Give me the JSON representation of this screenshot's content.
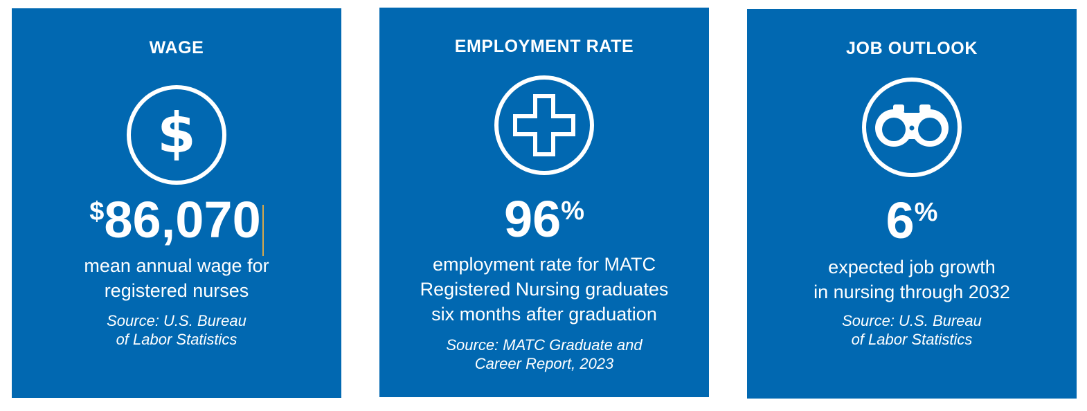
{
  "cards": {
    "wage": {
      "title": "WAGE",
      "icon": "dollar-icon",
      "stat_prefix": "$",
      "stat_value": "86,070",
      "description": [
        "mean annual wage for",
        "registered nurses"
      ],
      "source": [
        "Source: U.S. Bureau",
        "of Labor Statistics"
      ]
    },
    "employment": {
      "title": "EMPLOYMENT RATE",
      "icon": "medical-cross-icon",
      "stat_value": "96",
      "stat_suffix": "%",
      "description": [
        "employment rate for MATC",
        "Registered Nursing graduates",
        "six months after graduation"
      ],
      "source": [
        "Source: MATC Graduate and",
        "Career Report, 2023"
      ]
    },
    "outlook": {
      "title": "JOB OUTLOOK",
      "icon": "binoculars-icon",
      "stat_value": "6",
      "stat_suffix": "%",
      "description": [
        "expected job growth",
        "in nursing through 2032"
      ],
      "source": [
        "Source: U.S. Bureau",
        "of Labor Statistics"
      ]
    }
  },
  "colors": {
    "card_background": "#0168b1",
    "foreground": "#ffffff",
    "cursor": "#d8a84a"
  }
}
